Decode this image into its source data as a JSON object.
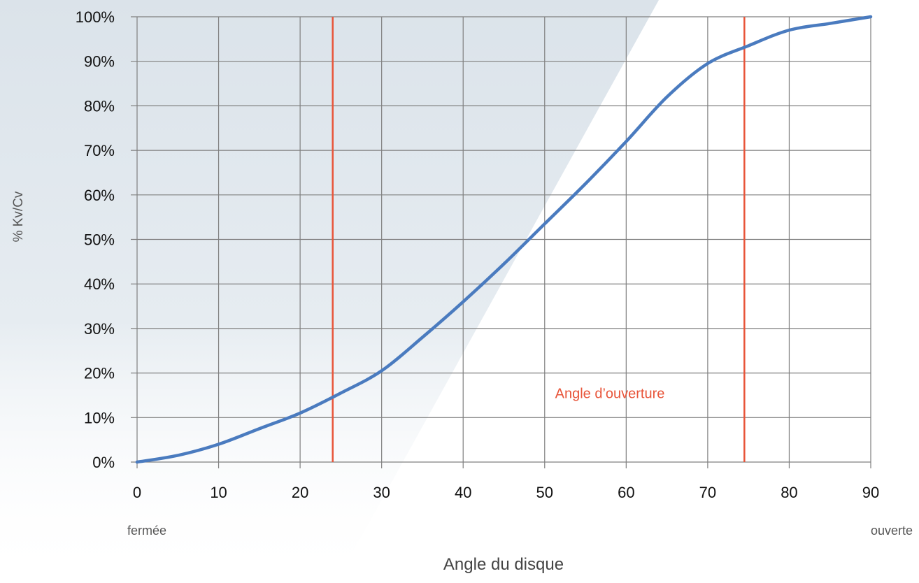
{
  "chart_data": {
    "type": "line",
    "xlabel": "Angle du disque",
    "ylabel": "% Kv/Cv",
    "xlim": [
      0,
      90
    ],
    "ylim": [
      0,
      100
    ],
    "x_ticks": [
      0,
      10,
      20,
      30,
      40,
      50,
      60,
      70,
      80,
      90
    ],
    "x_tick_labels": [
      "0",
      "10",
      "20",
      "30",
      "40",
      "50",
      "60",
      "70",
      "80",
      "90"
    ],
    "y_ticks": [
      0,
      10,
      20,
      30,
      40,
      50,
      60,
      70,
      80,
      90,
      100
    ],
    "y_tick_labels": [
      "0%",
      "10%",
      "20%",
      "30%",
      "40%",
      "50%",
      "60%",
      "70%",
      "80%",
      "90%",
      "100%"
    ],
    "x_start_label": "fermée",
    "x_end_label": "ouverte",
    "grid": true,
    "series": [
      {
        "color": "#4a7bbf",
        "x": [
          0,
          5,
          10,
          15,
          20,
          25,
          30,
          35,
          40,
          45,
          50,
          55,
          60,
          65,
          70,
          75,
          80,
          85,
          90
        ],
        "y": [
          0,
          1.5,
          4,
          7.5,
          11,
          15.5,
          20.5,
          28,
          36,
          44.5,
          53.5,
          62.5,
          72,
          82,
          89.5,
          93.5,
          97,
          98.5,
          100
        ]
      }
    ],
    "reference_lines": [
      {
        "x": 24,
        "color": "#e8553a"
      },
      {
        "x": 74.5,
        "color": "#e8553a"
      }
    ],
    "annotations": [
      {
        "text": "Angle d’ouverture",
        "x": 58,
        "y": 15.5,
        "color": "#e8553a"
      }
    ]
  }
}
